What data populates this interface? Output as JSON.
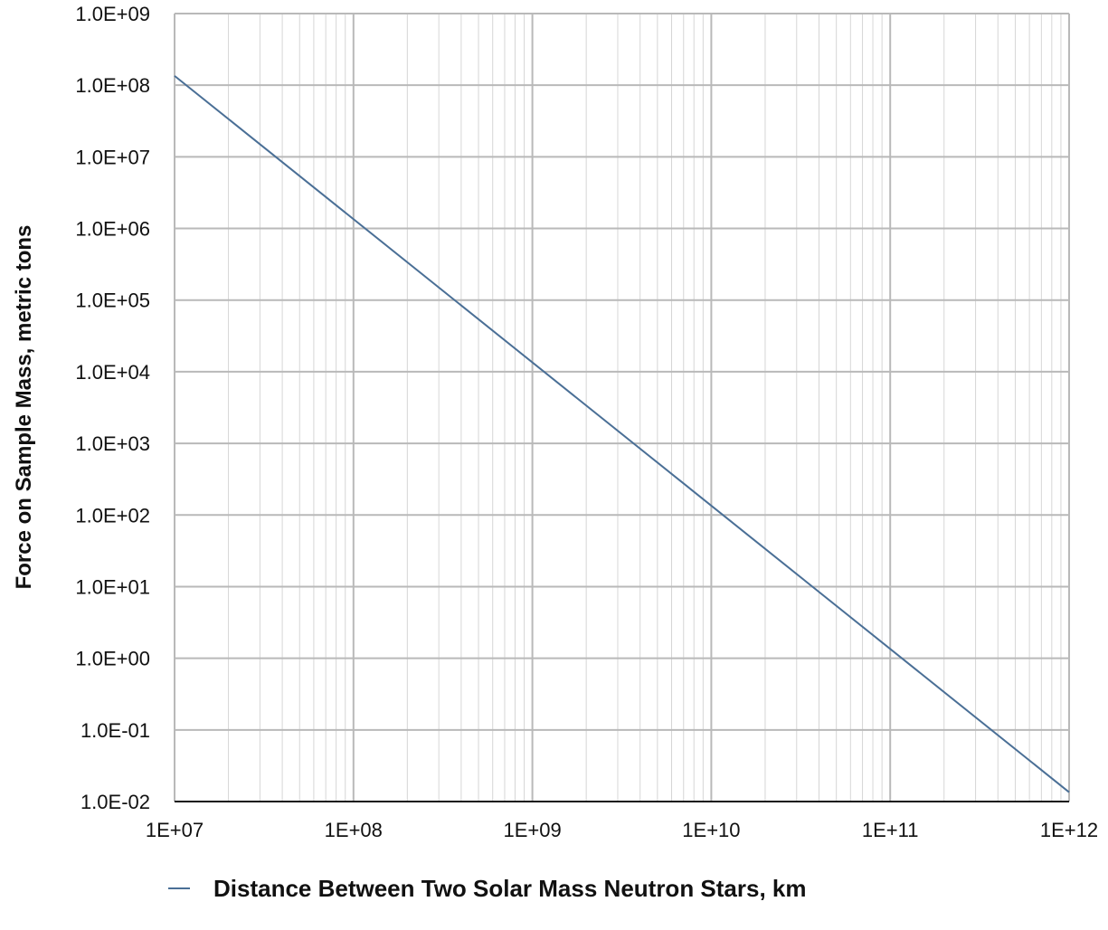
{
  "chart_data": {
    "type": "line",
    "title": "",
    "xlabel": "",
    "ylabel": "Force on Sample Mass, metric tons",
    "x_scale": "log",
    "y_scale": "log",
    "xlim": [
      10000000,
      1000000000000
    ],
    "ylim": [
      0.01,
      1000000000
    ],
    "x_ticks": [
      "1E+07",
      "1E+08",
      "1E+09",
      "1E+10",
      "1E+11",
      "1E+12"
    ],
    "y_ticks": [
      "1.0E-02",
      "1.0E-01",
      "1.0E+00",
      "1.0E+01",
      "1.0E+02",
      "1.0E+03",
      "1.0E+04",
      "1.0E+05",
      "1.0E+06",
      "1.0E+07",
      "1.0E+08",
      "1.0E+09"
    ],
    "grid": true,
    "legend_position": "bottom",
    "series": [
      {
        "name": "Distance Between Two Solar Mass Neutron Stars, km",
        "color": "#4a6f96",
        "x": [
          10000000,
          1000000000000
        ],
        "y": [
          135000000,
          0.0135
        ]
      }
    ]
  }
}
